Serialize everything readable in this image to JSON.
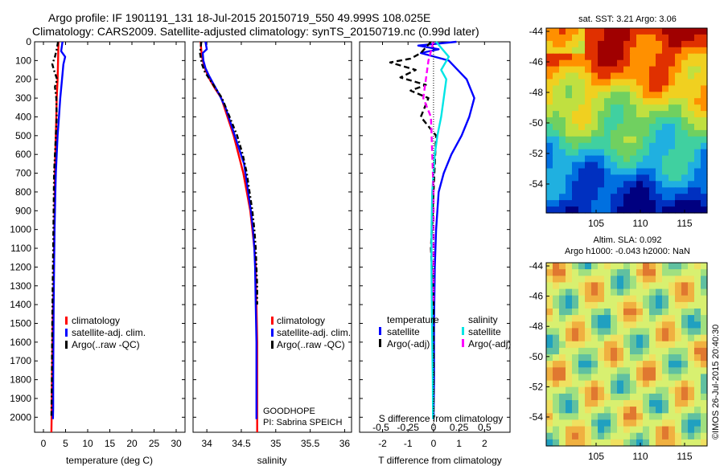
{
  "header": {
    "line1": "Argo profile: IF 1901191_131 18-Jul-2015 20150719_550 49.999S 108.025E",
    "line2": "Climatology: CARS2009. Satellite-adjusted climatology: synTS_20150719.nc (0.99d later)"
  },
  "colors": {
    "climatology": "#ff0000",
    "satellite": "#0000ff",
    "argo": "#000000",
    "s_satellite": "#00e5e5",
    "s_argo": "#ff00ff"
  },
  "depth_axis": {
    "ticks": [
      0,
      100,
      200,
      300,
      400,
      500,
      600,
      700,
      800,
      900,
      1000,
      1100,
      1200,
      1300,
      1400,
      1500,
      1600,
      1700,
      1800,
      1900,
      2000
    ],
    "lim": [
      0,
      2080
    ]
  },
  "legend": {
    "climatology": "climatology",
    "satellite_adj": "satellite-adj. clim.",
    "argo_qc": "Argo(..raw -QC)"
  },
  "diff_legend": {
    "temperature": "temperature",
    "salinity": "salinity",
    "satellite": "satellite",
    "argo_adj": "Argo(-adj)"
  },
  "annotation": {
    "project": "GOODHOPE",
    "pi": "PI: Sabrina SPEICH"
  },
  "sst_map": {
    "title": "sat. SST: 3.21 Argo: 3.06",
    "yticks": [
      "-44",
      "-46",
      "-48",
      "-50",
      "-52",
      "-54"
    ],
    "xticks": [
      "105",
      "110",
      "115"
    ]
  },
  "sla_map": {
    "title1": "Altim. SLA: 0.092",
    "title2": "Argo h1000: -0.043 h2000: NaN",
    "yticks": [
      "-44",
      "-46",
      "-48",
      "-50",
      "-52",
      "-54"
    ],
    "xticks": [
      "105",
      "110",
      "115"
    ]
  },
  "credit": "©IMOS 26-Jul-2015 20:40:30",
  "chart_data": [
    {
      "type": "line",
      "name": "temperature",
      "xlabel": "temperature (deg C)",
      "ylabel": "",
      "xlim": [
        -2,
        32
      ],
      "ylim": [
        2080,
        0
      ],
      "xticks": [
        0,
        5,
        10,
        15,
        20,
        25,
        30
      ],
      "series": [
        {
          "name": "climatology",
          "x": [
            3.4,
            3.3,
            3.2,
            3.0,
            2.9,
            2.8,
            2.6,
            2.5,
            2.4,
            2.3,
            2.2,
            2.1,
            2.0,
            1.95,
            1.9,
            1.85,
            1.8
          ],
          "y": [
            0,
            100,
            200,
            300,
            400,
            500,
            700,
            900,
            1100,
            1300,
            1400,
            1500,
            1700,
            1800,
            1900,
            2000,
            2080
          ]
        },
        {
          "name": "satellite-adj. clim.",
          "x": [
            4.3,
            4.0,
            4.9,
            4.5,
            4.2,
            3.8,
            3.5,
            3.2,
            3.0,
            2.8,
            2.7,
            2.5,
            2.4,
            2.3,
            2.25,
            2.2,
            2.2,
            2.15
          ],
          "y": [
            0,
            50,
            80,
            120,
            200,
            300,
            400,
            500,
            600,
            700,
            800,
            1000,
            1200,
            1400,
            1600,
            1800,
            1950,
            2010
          ]
        },
        {
          "name": "Argo(..raw -QC)",
          "x": [
            3.3,
            3.0,
            2.6,
            2.0,
            2.5,
            3.1,
            2.6,
            2.9,
            3.0,
            2.8,
            2.4,
            2.3,
            2.2,
            2.1,
            2.0,
            1.9,
            1.8
          ],
          "y": [
            0,
            40,
            80,
            120,
            160,
            200,
            240,
            300,
            400,
            500,
            700,
            900,
            1100,
            1300,
            1500,
            1800,
            2000
          ]
        }
      ]
    },
    {
      "type": "line",
      "name": "salinity",
      "xlabel": "salinity",
      "ylabel": "",
      "xlim": [
        33.8,
        36.1
      ],
      "ylim": [
        2080,
        0
      ],
      "xticks": [
        34,
        34.5,
        35,
        35.5,
        36
      ],
      "series": [
        {
          "name": "climatology",
          "x": [
            33.91,
            33.92,
            33.94,
            33.98,
            34.04,
            34.12,
            34.21,
            34.3,
            34.39,
            34.46,
            34.53,
            34.58,
            34.63,
            34.66,
            34.69,
            34.71,
            34.72,
            34.73,
            34.73
          ],
          "y": [
            0,
            50,
            100,
            150,
            200,
            250,
            300,
            400,
            500,
            600,
            700,
            800,
            900,
            1000,
            1100,
            1200,
            1400,
            1600,
            2080
          ]
        },
        {
          "name": "satellite-adj. clim.",
          "x": [
            33.98,
            34.0,
            33.94,
            33.95,
            33.98,
            34.03,
            34.09,
            34.18,
            34.27,
            34.36,
            34.45,
            34.54,
            34.6,
            34.64,
            34.67,
            34.69,
            34.7,
            34.71,
            34.72,
            34.72
          ],
          "y": [
            0,
            40,
            60,
            100,
            140,
            180,
            220,
            280,
            350,
            450,
            550,
            650,
            800,
            900,
            1000,
            1100,
            1200,
            1400,
            1600,
            2010
          ]
        },
        {
          "name": "Argo(..raw -QC)",
          "x": [
            33.92,
            33.9,
            33.93,
            33.97,
            34.04,
            34.13,
            34.22,
            34.33,
            34.44,
            34.52,
            34.58,
            34.62,
            34.66,
            34.69,
            34.71,
            34.72,
            34.73,
            34.73
          ],
          "y": [
            0,
            60,
            120,
            160,
            200,
            250,
            300,
            400,
            500,
            600,
            700,
            800,
            900,
            1000,
            1100,
            1200,
            1300,
            1400
          ]
        }
      ]
    },
    {
      "type": "line",
      "name": "difference",
      "xlabel": "T difference from climatology",
      "x2label": "S difference from climatology",
      "ylabel": "",
      "xlim": [
        -2.9,
        3.0
      ],
      "ylim": [
        2080,
        0
      ],
      "xticks": [
        -2,
        -1,
        0,
        1,
        2
      ],
      "x2ticks": [
        "-0.5",
        "-0.25",
        "0",
        "0.25",
        "0.5"
      ],
      "series": [
        {
          "name": "temperature satellite",
          "x": [
            0.9,
            -0.6,
            0.2,
            -0.5,
            0.6,
            1.3,
            1.6,
            1.4,
            1.1,
            0.7,
            0.4,
            0.2,
            0.1,
            0.05,
            0.02,
            0.02,
            0.0
          ],
          "y": [
            0,
            20,
            40,
            60,
            100,
            200,
            300,
            400,
            500,
            600,
            700,
            800,
            1000,
            1200,
            1500,
            1800,
            2010
          ]
        },
        {
          "name": "temperature Argo(-adj)",
          "x": [
            -0.1,
            -0.5,
            -0.9,
            -1.7,
            -0.7,
            -1.3,
            -0.3,
            -0.9,
            -0.2,
            -0.5,
            0.1,
            0.0,
            -0.1,
            0.0,
            0.0,
            0.0
          ],
          "y": [
            0,
            60,
            90,
            110,
            150,
            190,
            230,
            260,
            300,
            400,
            500,
            800,
            1100,
            1400,
            1700,
            2000
          ]
        },
        {
          "name": "salinity satellite",
          "x": [
            0.1,
            0.6,
            0.3,
            0.5,
            0.4,
            0.3,
            0.15,
            0.05,
            0.0,
            -0.05,
            -0.08,
            -0.08,
            -0.06,
            -0.03,
            -0.02
          ],
          "y": [
            0,
            80,
            150,
            200,
            300,
            400,
            500,
            600,
            700,
            800,
            1000,
            1200,
            1500,
            1800,
            2010
          ]
        },
        {
          "name": "salinity Argo(-adj)",
          "x": [
            0.0,
            -0.2,
            -0.3,
            -0.4,
            -0.1,
            -0.05,
            0.0,
            0.0,
            0.0
          ],
          "y": [
            0,
            100,
            200,
            300,
            400,
            600,
            800,
            1100,
            1400
          ]
        }
      ]
    }
  ]
}
